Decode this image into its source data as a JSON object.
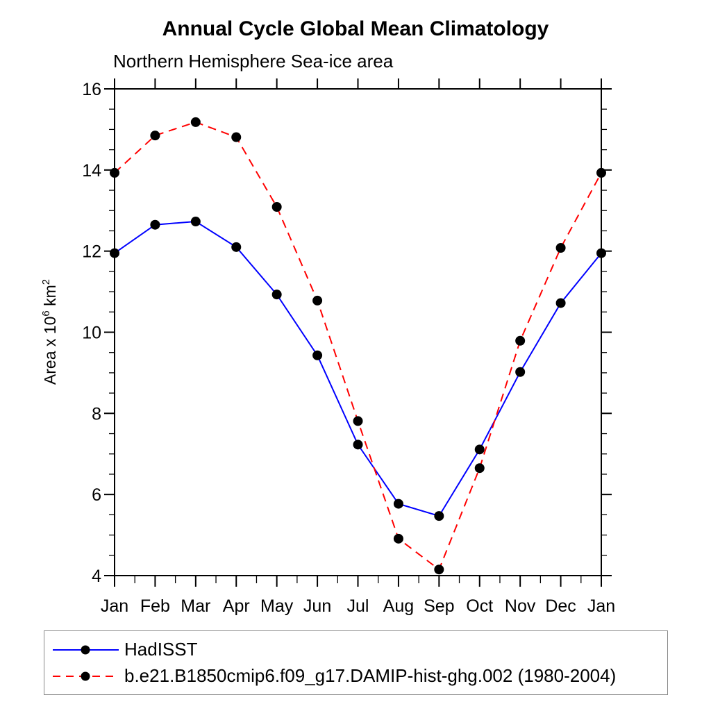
{
  "chart_data": {
    "type": "line",
    "title": "Annual Cycle Global Mean Climatology",
    "subtitle": "Northern Hemisphere Sea-ice area",
    "xlabel": "",
    "ylabel": "Area x 10⁶ km²",
    "ylabel_parts": [
      {
        "text": "Area x 10"
      },
      {
        "text": "6",
        "sup": true
      },
      {
        "text": " km"
      },
      {
        "text": "2",
        "sup": true
      }
    ],
    "categories": [
      "Jan",
      "Feb",
      "Mar",
      "Apr",
      "May",
      "Jun",
      "Jul",
      "Aug",
      "Sep",
      "Oct",
      "Nov",
      "Dec",
      "Jan"
    ],
    "series": [
      {
        "name": "HadISST",
        "color": "#0000ff",
        "style": "solid",
        "marker": "filled-circle",
        "marker_color": "#000000",
        "values": [
          11.95,
          12.65,
          12.73,
          12.1,
          10.93,
          9.43,
          7.23,
          5.77,
          5.47,
          7.11,
          9.02,
          10.72,
          11.95
        ]
      },
      {
        "name": "b.e21.B1850cmip6.f09_g17.DAMIP-hist-ghg.002 (1980-2004)",
        "color": "#ff0000",
        "style": "dashed",
        "marker": "filled-circle",
        "marker_color": "#000000",
        "values": [
          13.93,
          14.85,
          15.18,
          14.81,
          13.09,
          10.78,
          7.81,
          4.91,
          4.15,
          6.65,
          9.79,
          12.08,
          13.93
        ]
      }
    ],
    "ylim": [
      4,
      16
    ],
    "y_major_step": 2,
    "y_minor_step": 0.5,
    "y_tick_labels": [
      "4",
      "6",
      "8",
      "10",
      "12",
      "14",
      "16"
    ],
    "grid": false,
    "frame": "box-with-outward-ticks",
    "legend_position": "bottom-box"
  }
}
